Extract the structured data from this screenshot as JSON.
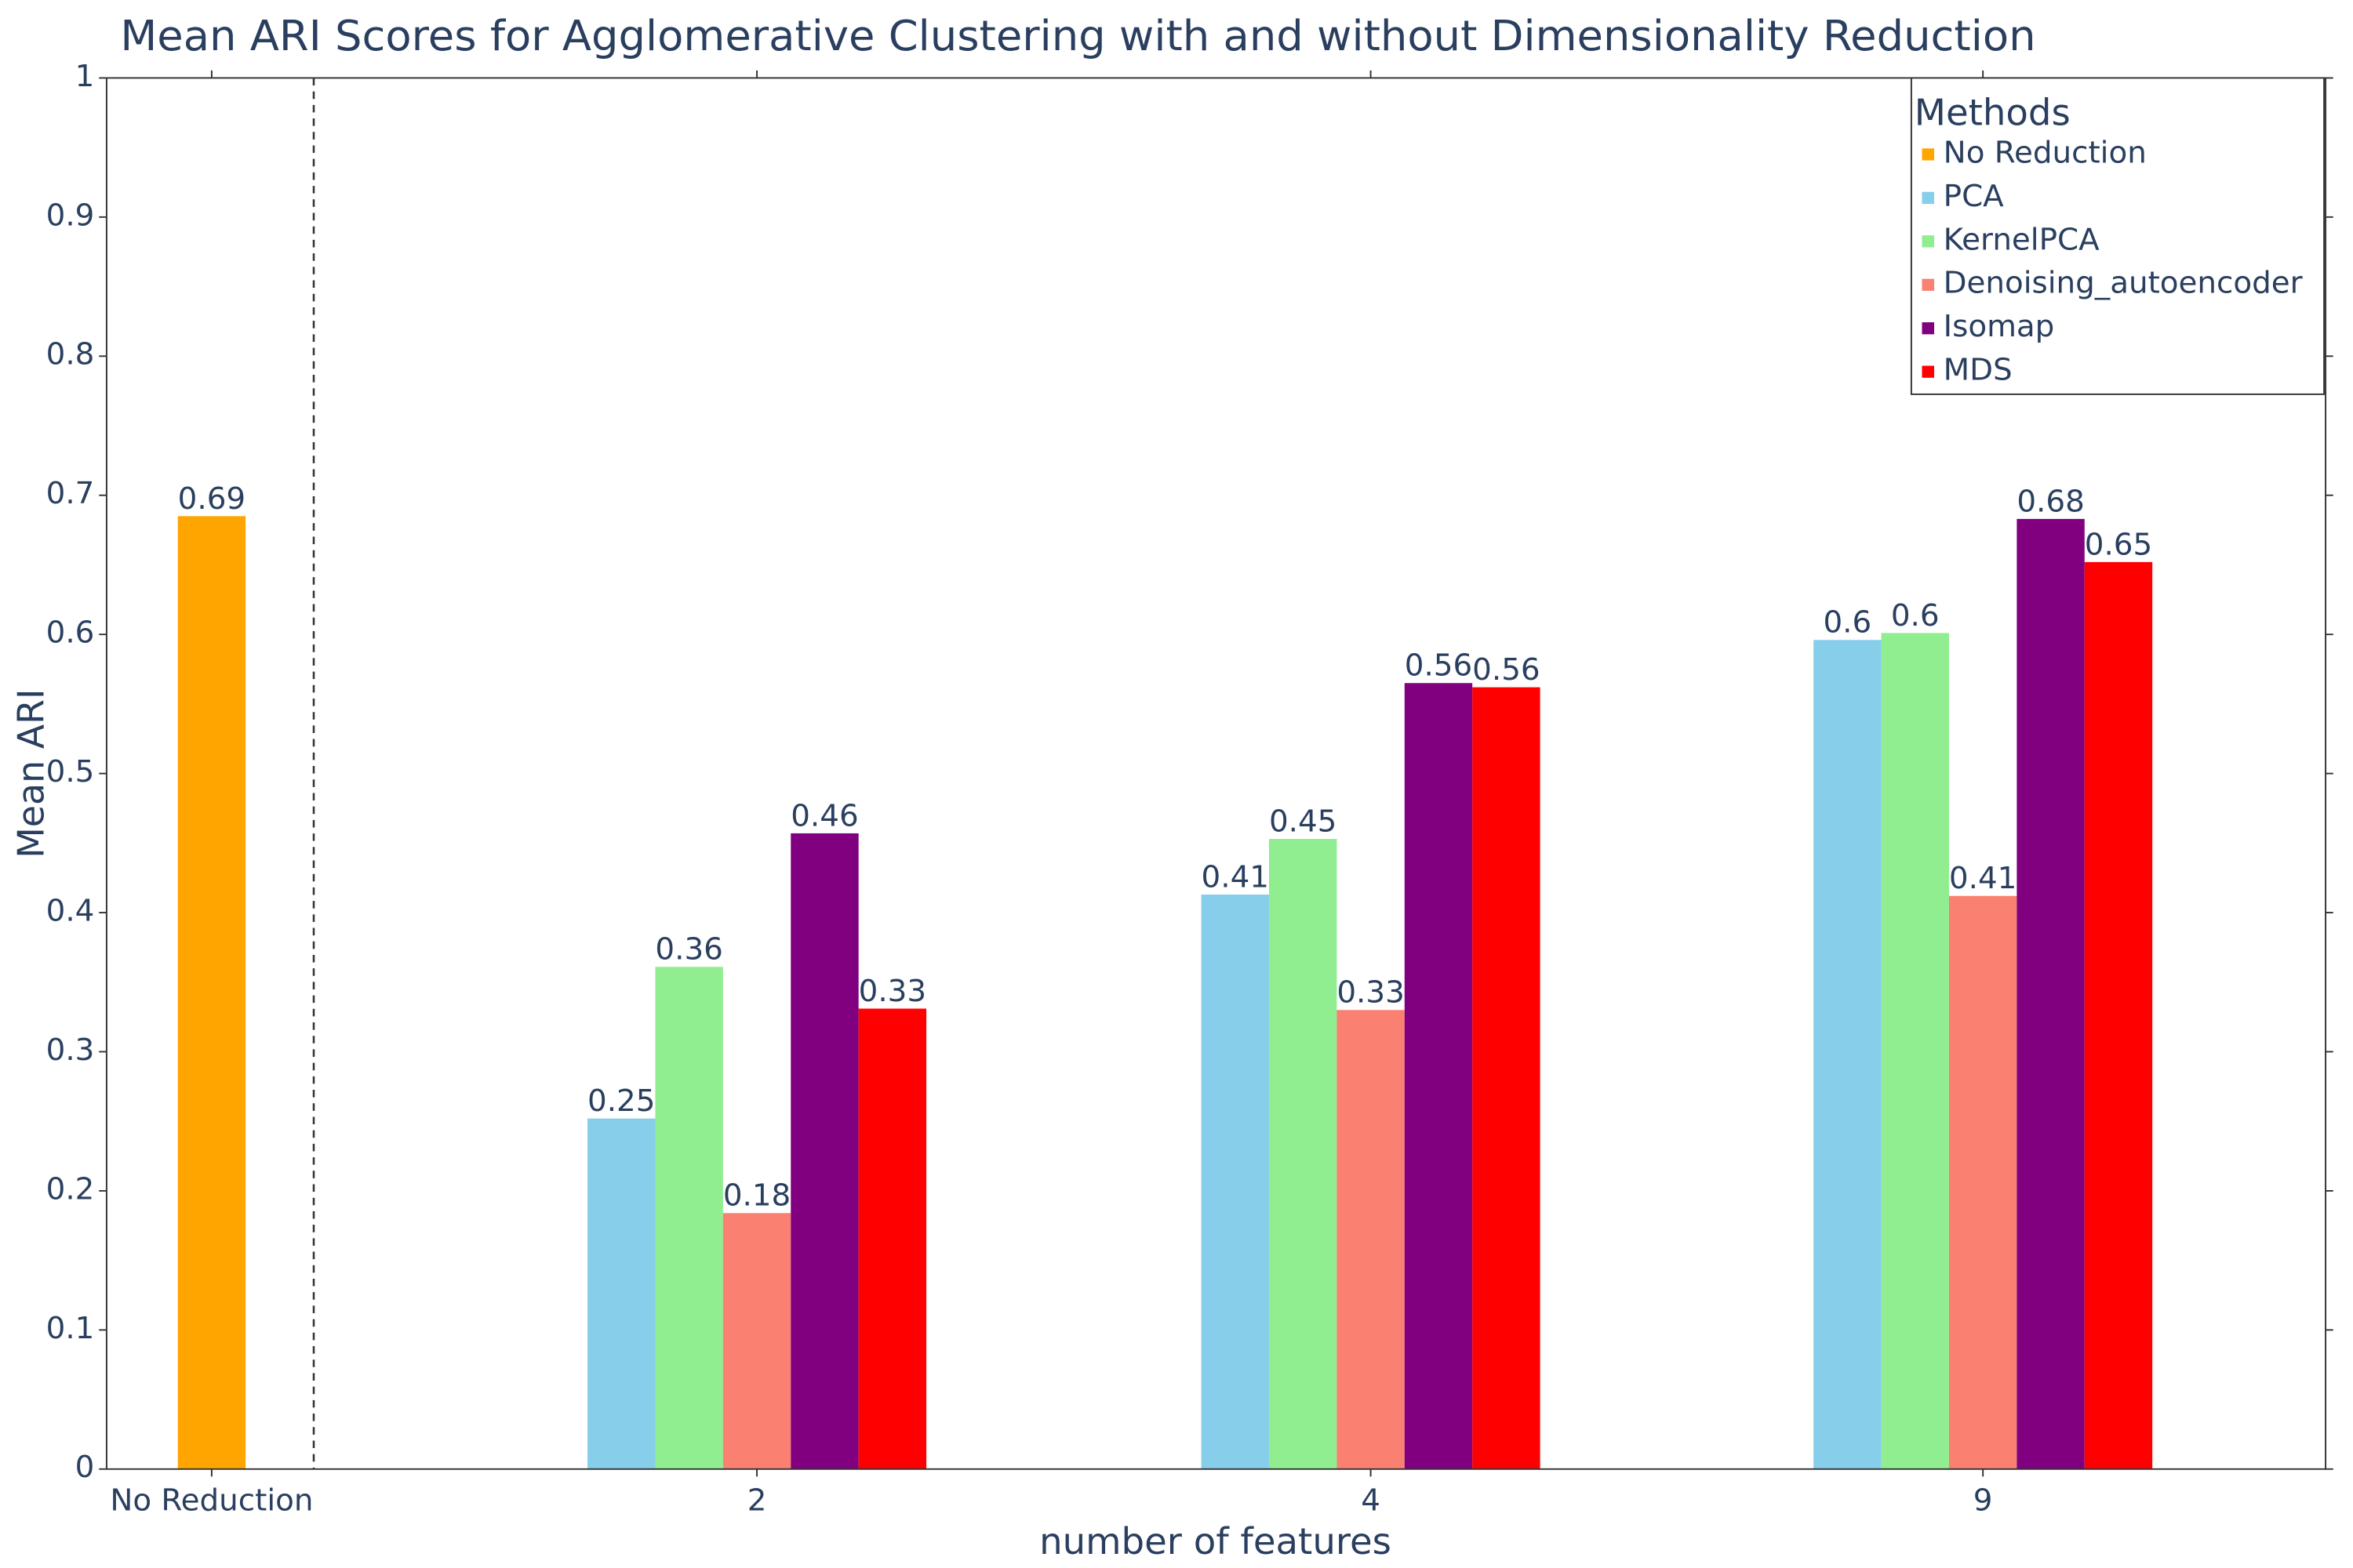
{
  "chart_data": {
    "type": "bar",
    "title": "Mean ARI Scores for Agglomerative Clustering with and without Dimensionality Reduction",
    "xlabel": "number of features",
    "ylabel": "Mean ARI",
    "categories": [
      "No Reduction",
      "2",
      "4",
      "9"
    ],
    "series": [
      {
        "name": "No Reduction",
        "color": "#ffa500",
        "values": [
          0.685,
          null,
          null,
          null
        ],
        "value_labels": [
          "0.69",
          null,
          null,
          null
        ]
      },
      {
        "name": "PCA",
        "color": "#87ceeb",
        "values": [
          null,
          0.252,
          0.413,
          0.596
        ],
        "value_labels": [
          null,
          "0.25",
          "0.41",
          "0.6"
        ]
      },
      {
        "name": "KernelPCA",
        "color": "#90ee90",
        "values": [
          null,
          0.361,
          0.453,
          0.601
        ],
        "value_labels": [
          null,
          "0.36",
          "0.45",
          "0.6"
        ]
      },
      {
        "name": "Denoising_autoencoder",
        "color": "#fa8072",
        "values": [
          null,
          0.184,
          0.33,
          0.412
        ],
        "value_labels": [
          null,
          "0.18",
          "0.33",
          "0.41"
        ]
      },
      {
        "name": "Isomap",
        "color": "#800080",
        "values": [
          null,
          0.457,
          0.565,
          0.683
        ],
        "value_labels": [
          null,
          "0.46",
          "0.56",
          "0.68"
        ]
      },
      {
        "name": "MDS",
        "color": "#ff0000",
        "values": [
          null,
          0.331,
          0.562,
          0.652
        ],
        "value_labels": [
          null,
          "0.33",
          "0.56",
          "0.65"
        ]
      }
    ],
    "ylim": [
      0,
      1
    ],
    "yticks": [
      0,
      0.1,
      0.2,
      0.3,
      0.4,
      0.5,
      0.6,
      0.7,
      0.8,
      0.9,
      1
    ],
    "legend_title": "Methods",
    "legend": "upper right",
    "grid": false
  }
}
